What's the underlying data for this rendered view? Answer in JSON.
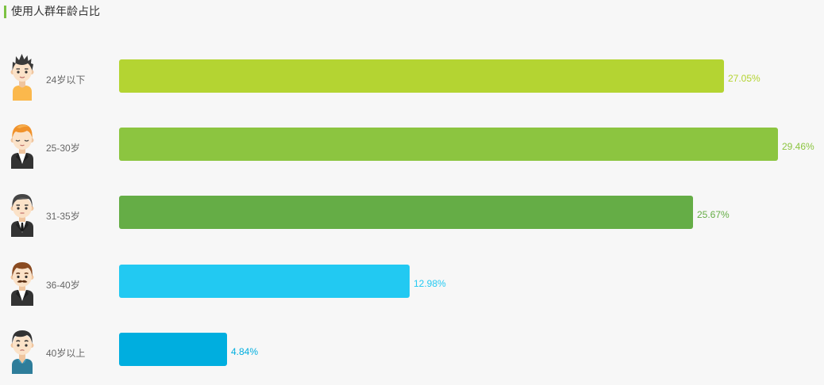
{
  "header": {
    "accent_color": "#7cc242"
  },
  "chart_data": {
    "type": "bar",
    "orientation": "horizontal",
    "title": "使用人群年龄占比",
    "categories": [
      "24岁以下",
      "25-30岁",
      "31-35岁",
      "36-40岁",
      "40岁以上"
    ],
    "values": [
      27.05,
      29.46,
      25.67,
      12.98,
      4.84
    ],
    "value_labels": [
      "27.05%",
      "29.46%",
      "25.67%",
      "12.98%",
      "4.84%"
    ],
    "colors": [
      "#b4d432",
      "#8cc540",
      "#65ad46",
      "#22c9f2",
      "#00aedf"
    ],
    "category_icons": [
      "young-man-orange-shirt-icon",
      "orange-hair-man-suit-icon",
      "man-suit-tie-icon",
      "mustache-man-suit-icon",
      "man-teal-shirt-icon"
    ],
    "grid": false,
    "legend": "none"
  }
}
